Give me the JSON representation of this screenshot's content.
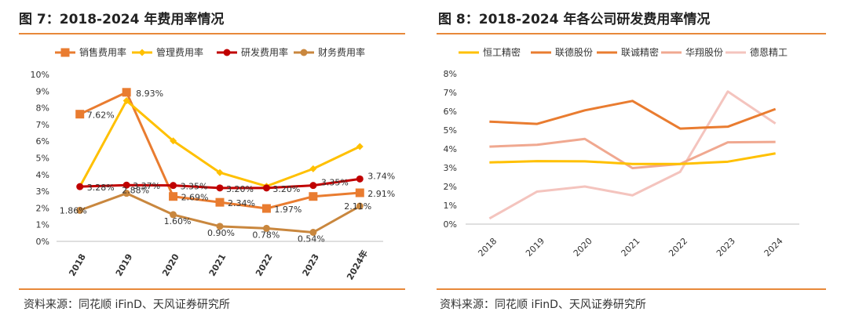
{
  "left": {
    "title": "图 7：2018-2024 年费用率情况",
    "source": "资料来源：同花顺 iFinD、天风证券研究所"
  },
  "right": {
    "title": "图 8：2018-2024 年各公司研发费用率情况",
    "source": "资料来源：同花顺 iFinD、天风证券研究所"
  },
  "colors": {
    "accent": "#e8893a"
  },
  "chart_data": [
    {
      "type": "line",
      "title": "",
      "xlabel": "",
      "ylabel": "",
      "ylim": [
        0,
        10
      ],
      "y_unit": "%",
      "categories": [
        "2018",
        "2019",
        "2020",
        "2021",
        "2022",
        "2023",
        "2024年"
      ],
      "yticks": [
        "0%",
        "1%",
        "2%",
        "3%",
        "4%",
        "5%",
        "6%",
        "7%",
        "8%",
        "9%",
        "10%"
      ],
      "legend_position": "top",
      "grid": false,
      "series": [
        {
          "name": "销售费用率",
          "color": "#e97c30",
          "marker": "square",
          "values": [
            7.62,
            8.93,
            2.69,
            2.34,
            1.97,
            2.69,
            2.91
          ],
          "labels": [
            "7.62%",
            "8.93%",
            "2.69%",
            "2.34%",
            "1.97%",
            "",
            "2.91%"
          ]
        },
        {
          "name": "管理费用率",
          "color": "#ffc000",
          "marker": "diamond",
          "values": [
            3.28,
            8.43,
            6.02,
            4.12,
            3.3,
            4.35,
            5.68
          ],
          "labels": [
            "",
            "",
            "",
            "",
            "",
            "",
            ""
          ]
        },
        {
          "name": "研发费用率",
          "color": "#c00000",
          "marker": "circle",
          "values": [
            3.28,
            3.37,
            3.35,
            3.2,
            3.2,
            3.35,
            3.74
          ],
          "labels": [
            "3.28%",
            "3.37%",
            "3.35%",
            "3.20%",
            "3.20%",
            "3.35%",
            "3.74%"
          ]
        },
        {
          "name": "财务费用率",
          "color": "#c9873e",
          "marker": "circle",
          "values": [
            1.86,
            2.88,
            1.6,
            0.9,
            0.78,
            0.54,
            2.11
          ],
          "labels": [
            "1.86%",
            "2.88%",
            "1.60%",
            "0.90%",
            "0.78%",
            "0.54%",
            "2.11%"
          ]
        }
      ]
    },
    {
      "type": "line",
      "title": "",
      "xlabel": "",
      "ylabel": "",
      "ylim": [
        0,
        8
      ],
      "y_unit": "%",
      "categories": [
        "2018",
        "2019",
        "2020",
        "2021",
        "2022",
        "2023",
        "2024"
      ],
      "yticks": [
        "0%",
        "1%",
        "2%",
        "3%",
        "4%",
        "5%",
        "6%",
        "7%",
        "8%"
      ],
      "legend_position": "top",
      "grid": false,
      "series": [
        {
          "name": "恒工精密",
          "color": "#ffc000",
          "values": [
            3.28,
            3.35,
            3.34,
            3.2,
            3.2,
            3.32,
            3.76
          ]
        },
        {
          "name": "联德股份",
          "color": "#e97c30",
          "values": [
            5.45,
            5.33,
            6.05,
            6.55,
            5.08,
            5.18,
            6.12
          ]
        },
        {
          "name": "联诚精密",
          "color": "#e97c30",
          "values": [
            null,
            null,
            null,
            null,
            null,
            null,
            null
          ]
        },
        {
          "name": "华翔股份",
          "color": "#f0a890",
          "values": [
            4.12,
            4.22,
            4.53,
            2.98,
            3.2,
            4.35,
            4.37
          ]
        },
        {
          "name": "德恩精工",
          "color": "#f4c4be",
          "values": [
            0.3,
            1.73,
            2.0,
            1.53,
            2.78,
            7.05,
            5.35
          ]
        }
      ]
    }
  ]
}
